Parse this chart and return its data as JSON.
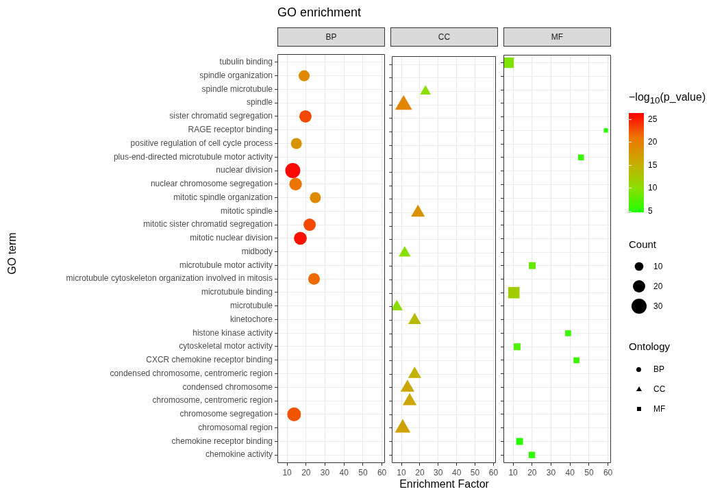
{
  "chart_data": [
    {
      "type": "bubble",
      "title": "GO enrichment",
      "subtitle": "BP",
      "ylabel": "GO term",
      "orientation": "horizontal",
      "marker": "circle",
      "grid": true,
      "categories": [
        "tubulin binding",
        "spindle organization",
        "spindle microtubule",
        "spindle",
        "sister chromatid segregation",
        "RAGE receptor binding",
        "positive regulation of cell cycle process",
        "plus-end-directed microtubule motor activity",
        "nuclear division",
        "nuclear chromosome segregation",
        "mitotic spindle organization",
        "mitotic spindle",
        "mitotic sister chromatid segregation",
        "mitotic nuclear division",
        "midbody",
        "microtubule motor activity",
        "microtubule cytoskeleton organization involved in mitosis",
        "microtubule binding",
        "microtubule",
        "kinetochore",
        "histone kinase activity",
        "cytoskeletal motor activity",
        "CXCR chemokine receptor binding",
        "condensed chromosome, centromeric region",
        "condensed chromosome",
        "chromosome, centromeric region",
        "chromosome segregation",
        "chromosomal region",
        "chemokine receptor binding",
        "chemokine activity"
      ],
      "series": [
        {
          "name": "BP",
          "values": [
            null,
            19.0,
            null,
            null,
            19.7,
            null,
            14.9,
            null,
            13.0,
            14.5,
            24.9,
            null,
            21.9,
            17.0,
            null,
            null,
            24.2,
            null,
            null,
            null,
            null,
            null,
            null,
            null,
            null,
            null,
            13.7,
            null,
            null,
            null
          ],
          "sizes": [
            null,
            16,
            null,
            null,
            20,
            null,
            16,
            null,
            30,
            21,
            16,
            null,
            20,
            22,
            null,
            null,
            18,
            null,
            null,
            null,
            null,
            null,
            null,
            null,
            null,
            null,
            25,
            null,
            null,
            null
          ],
          "colors": [
            null,
            "#df8900",
            null,
            null,
            "#f34800",
            null,
            "#d99300",
            null,
            "#fe0700",
            "#ed7400",
            "#df8900",
            null,
            "#f34800",
            "#fc1100",
            null,
            null,
            "#ee6900",
            null,
            null,
            null,
            null,
            null,
            null,
            null,
            null,
            null,
            "#f25300",
            null,
            null,
            null
          ]
        }
      ],
      "xlim": [
        4.9,
        61.6
      ],
      "xticks": [
        10,
        20,
        30,
        40,
        50,
        60
      ],
      "legend_title": "Count",
      "size_legend": [
        10,
        20,
        30
      ]
    },
    {
      "type": "bubble",
      "subtitle": "CC",
      "xlabel": "Enrichment Factor",
      "orientation": "horizontal",
      "marker": "triangle",
      "grid": true,
      "tick_labels": "x",
      "categories": [
        null,
        null,
        null,
        null,
        null,
        null,
        null,
        null,
        null,
        null,
        null,
        null,
        null,
        null,
        null,
        null,
        null,
        null,
        null,
        null,
        null,
        null,
        null,
        null,
        null,
        null,
        null,
        null,
        null,
        null
      ],
      "series": [
        {
          "name": "CC",
          "values": [
            null,
            null,
            23.1,
            11.2,
            null,
            null,
            null,
            null,
            null,
            null,
            null,
            19.0,
            null,
            null,
            11.8,
            null,
            null,
            null,
            7.5,
            17.2,
            null,
            null,
            null,
            17.2,
            13.3,
            14.5,
            null,
            10.7,
            null,
            null
          ],
          "sizes": [
            null,
            null,
            0.4,
            1,
            null,
            null,
            null,
            null,
            null,
            null,
            null,
            0.67,
            null,
            null,
            0.5,
            null,
            null,
            null,
            0.5,
            0.57,
            null,
            null,
            null,
            0.6,
            0.67,
            0.67,
            null,
            0.83,
            null,
            null
          ],
          "colors": [
            null,
            null,
            "#8adf00",
            "#e38400",
            null,
            null,
            null,
            null,
            null,
            null,
            null,
            "#d99300",
            null,
            null,
            "#8adf00",
            null,
            null,
            null,
            "#8adf00",
            "#b7ba00",
            null,
            null,
            null,
            "#c2b100",
            "#cba700",
            "#cba700",
            null,
            "#cfa200",
            null,
            null
          ]
        }
      ],
      "xlim": [
        4.9,
        61.6
      ],
      "xticks": [
        10,
        20,
        30,
        40,
        50,
        60
      ]
    },
    {
      "type": "bubble",
      "subtitle": "MF",
      "orientation": "horizontal",
      "marker": "square",
      "grid": true,
      "tick_labels": "x",
      "legend": "right",
      "legend_title": "Ontology",
      "categories": [
        null,
        null,
        null,
        null,
        null,
        null,
        null,
        null,
        null,
        null,
        null,
        null,
        null,
        null,
        null,
        null,
        null,
        null,
        null,
        null,
        null,
        null,
        null,
        null,
        null,
        null,
        null,
        null,
        null,
        null
      ],
      "series": [
        {
          "name": "MF",
          "values": [
            7.6,
            null,
            null,
            null,
            null,
            58.9,
            null,
            45.8,
            null,
            null,
            null,
            null,
            null,
            null,
            null,
            20.1,
            null,
            10.4,
            null,
            null,
            39.0,
            12.1,
            43.4,
            null,
            null,
            null,
            null,
            null,
            13.4,
            19.9
          ],
          "sizes": [
            0.86,
            null,
            null,
            null,
            null,
            0.14,
            null,
            0.27,
            null,
            null,
            null,
            null,
            null,
            null,
            null,
            0.36,
            null,
            1,
            null,
            null,
            0.27,
            0.36,
            0.27,
            null,
            null,
            null,
            null,
            null,
            0.36,
            0.32
          ],
          "cvalues": [
            9.5,
            null,
            null,
            null,
            null,
            5,
            null,
            6,
            null,
            null,
            null,
            null,
            null,
            null,
            null,
            8,
            null,
            12,
            null,
            null,
            6,
            7,
            6,
            null,
            null,
            null,
            null,
            null,
            5,
            5.5
          ]
        }
      ],
      "xlim": [
        4.9,
        61.6
      ],
      "xticks": [
        10,
        20,
        30,
        40,
        50,
        60
      ],
      "clabel": "−log$_{10}$(p_value)",
      "clim": [
        4.7,
        26.3
      ],
      "cticks": [
        5,
        10,
        15,
        20,
        25
      ]
    }
  ]
}
